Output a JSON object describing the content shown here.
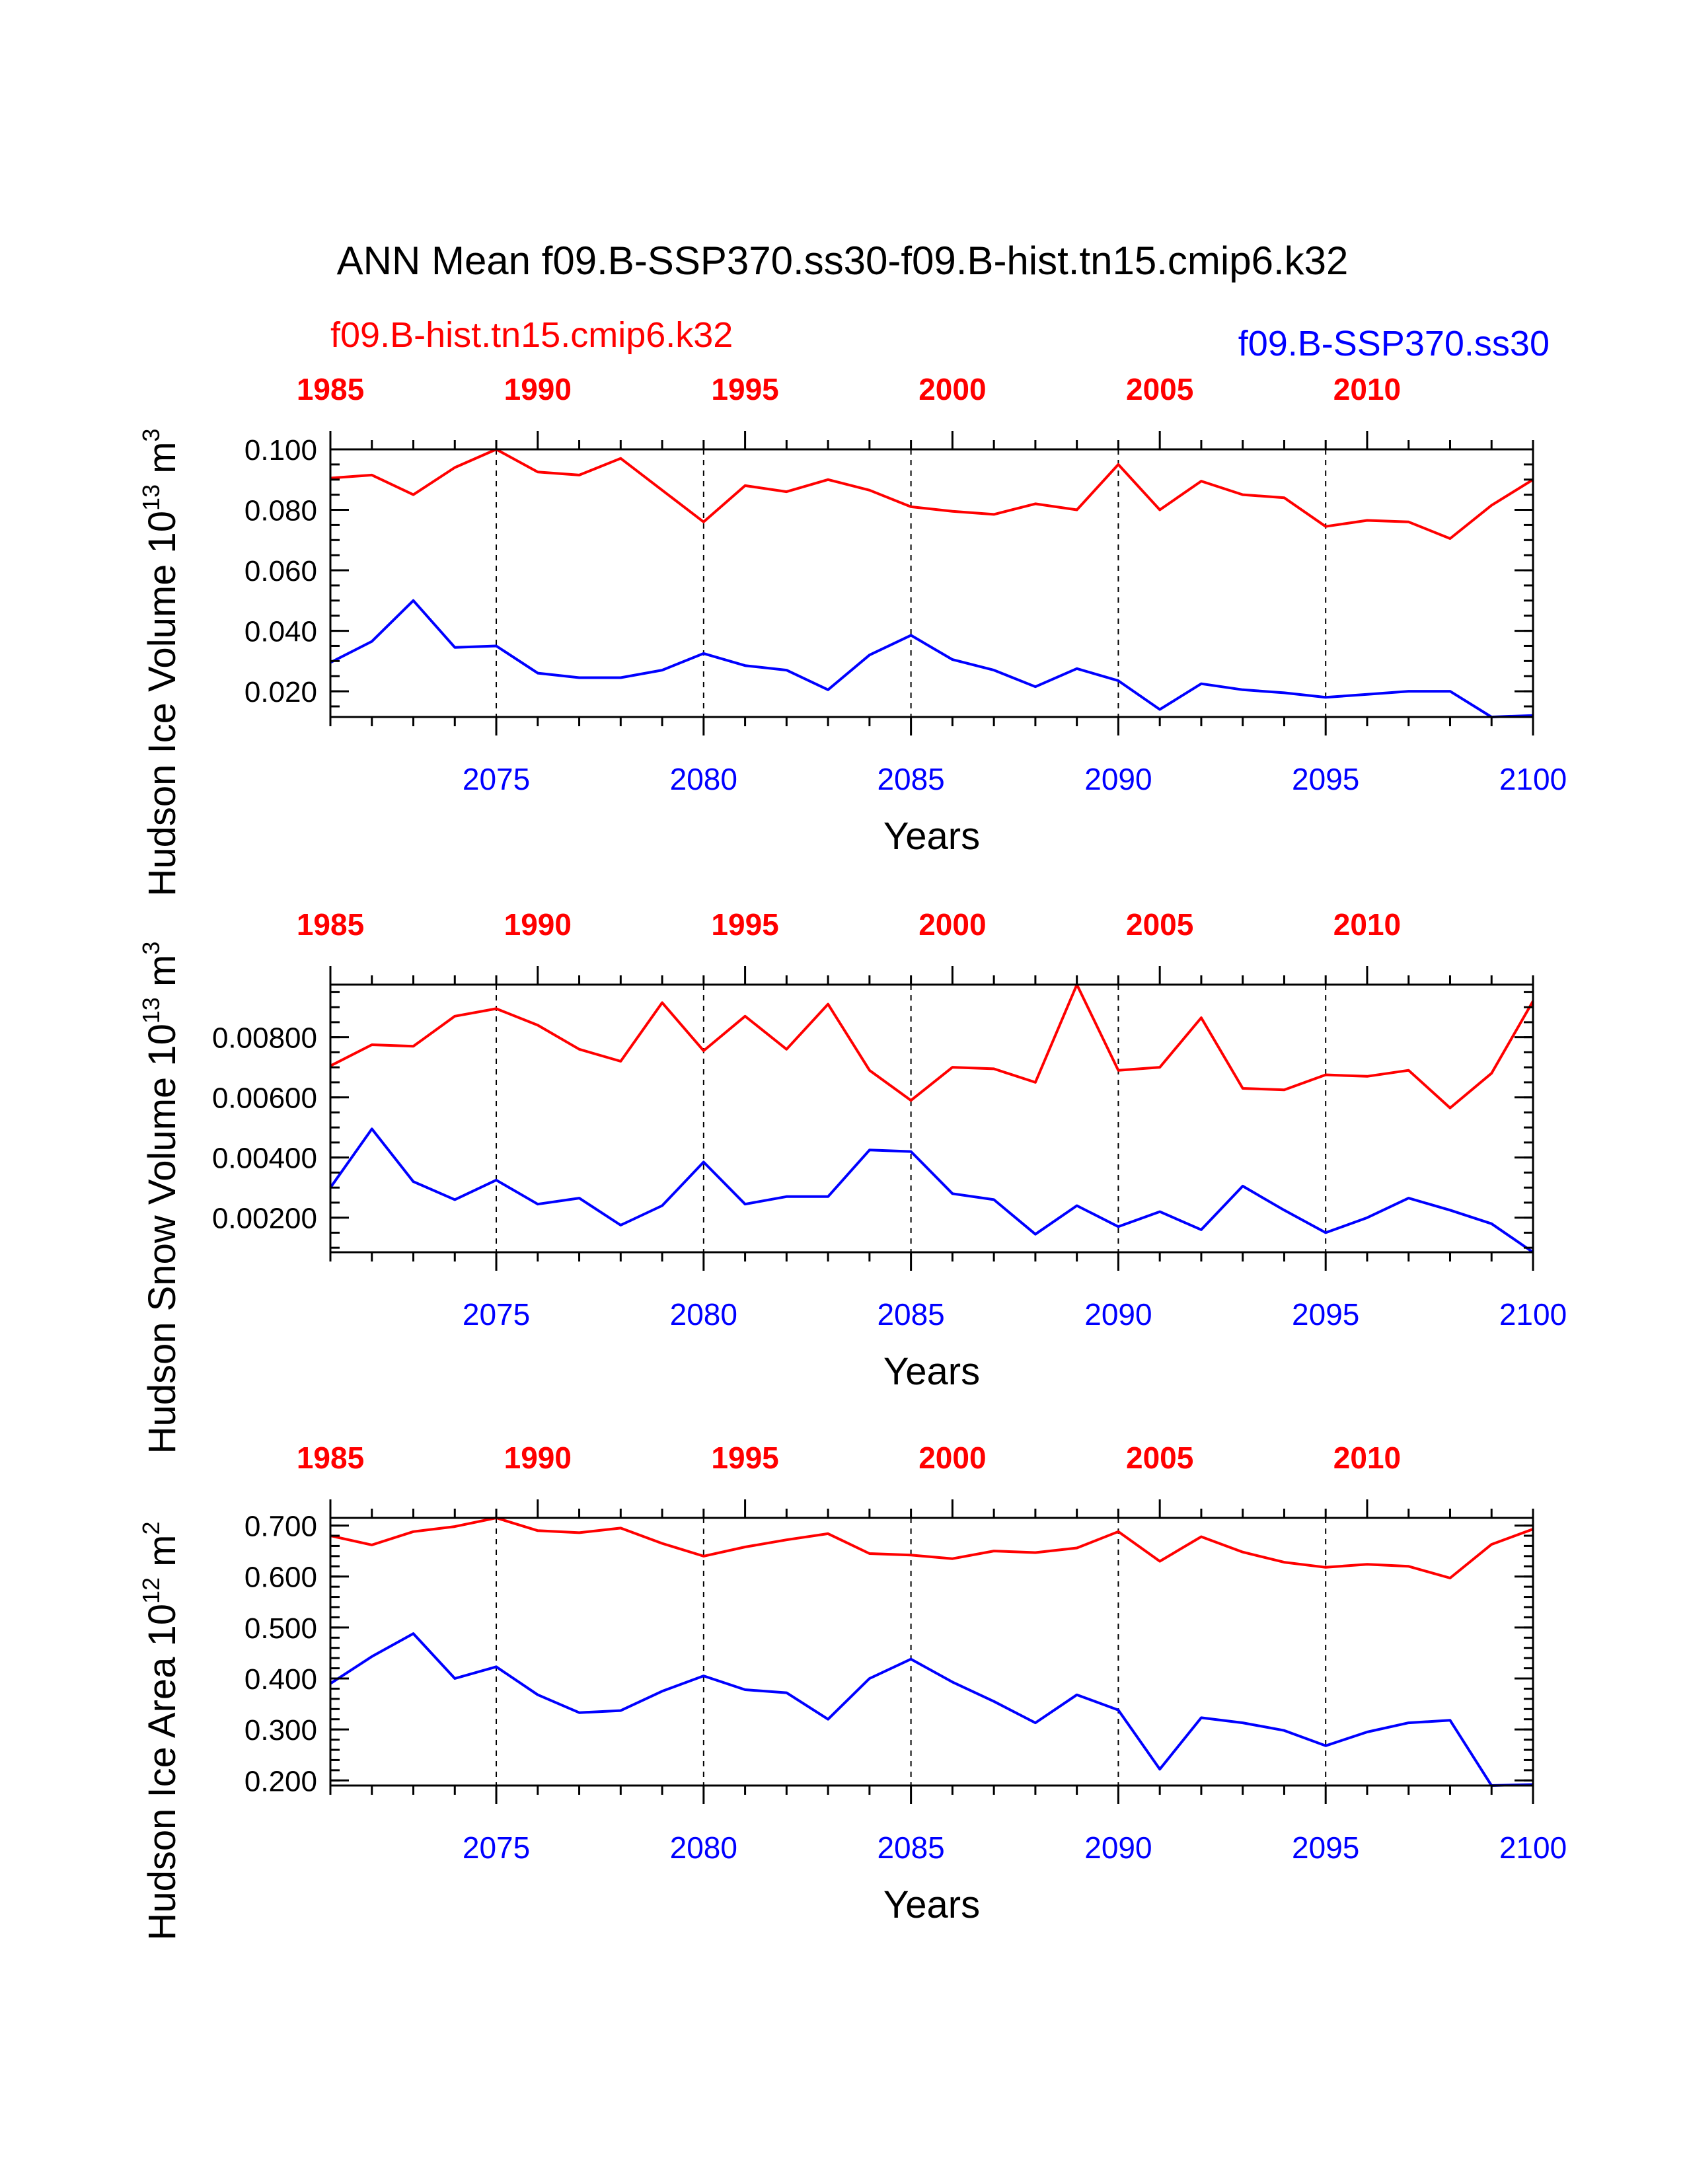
{
  "title": "ANN Mean f09.B-SSP370.ss30-f09.B-hist.tn15.cmip6.k32",
  "legend": {
    "hist_label": "f09.B-hist.tn15.cmip6.k32",
    "ssp_label": "f09.B-SSP370.ss30"
  },
  "colors": {
    "hist": "#ff0000",
    "ssp": "#0000ff",
    "axis": "#000000"
  },
  "xlabel": "Years",
  "chart_data": [
    {
      "type": "line",
      "ylabel": "Hudson Ice Volume 10^13 m^3",
      "ylabel_text": "Hudson Ice Volume 10",
      "ylabel_exp1": "13",
      "ylabel_unit": " m",
      "ylabel_exp2": "3",
      "ylim": [
        0.0115,
        0.1
      ],
      "y_ticks": [
        0.02,
        0.04,
        0.06,
        0.08,
        0.1
      ],
      "y_tick_labels": [
        "0.020",
        "0.040",
        "0.060",
        "0.080",
        "0.100"
      ],
      "y_minor_step": 0.005,
      "bottom_axis": {
        "range": [
          2071,
          2100
        ],
        "ticks": [
          2075,
          2080,
          2085,
          2090,
          2095,
          2100
        ],
        "labels": [
          "2075",
          "2080",
          "2085",
          "2090",
          "2095",
          "2100"
        ]
      },
      "top_axis": {
        "range": [
          1985,
          2014
        ],
        "ticks": [
          1985,
          1990,
          1995,
          2000,
          2005,
          2010
        ],
        "labels": [
          "1985",
          "1990",
          "1995",
          "2000",
          "2005",
          "2010"
        ]
      },
      "series": [
        {
          "name": "f09.B-hist.tn15.cmip6.k32",
          "years": [
            1985,
            1986,
            1987,
            1988,
            1989,
            1990,
            1991,
            1992,
            1993,
            1994,
            1995,
            1996,
            1997,
            1998,
            1999,
            2000,
            2001,
            2002,
            2003,
            2004,
            2005,
            2006,
            2007,
            2008,
            2009,
            2010,
            2011,
            2012,
            2013,
            2014
          ],
          "values": [
            0.0905,
            0.0915,
            0.085,
            0.094,
            0.1,
            0.0925,
            0.0915,
            0.097,
            0.0865,
            0.076,
            0.088,
            0.086,
            0.09,
            0.0865,
            0.081,
            0.0795,
            0.0785,
            0.082,
            0.08,
            0.095,
            0.08,
            0.0895,
            0.085,
            0.084,
            0.0745,
            0.0765,
            0.076,
            0.0705,
            0.0815,
            0.09
          ]
        },
        {
          "name": "f09.B-SSP370.ss30",
          "years": [
            2071,
            2072,
            2073,
            2074,
            2075,
            2076,
            2077,
            2078,
            2079,
            2080,
            2081,
            2082,
            2083,
            2084,
            2085,
            2086,
            2087,
            2088,
            2089,
            2090,
            2091,
            2092,
            2093,
            2094,
            2095,
            2096,
            2097,
            2098,
            2099,
            2100
          ],
          "values": [
            0.0295,
            0.0365,
            0.05,
            0.0345,
            0.035,
            0.026,
            0.0245,
            0.0245,
            0.027,
            0.0325,
            0.0285,
            0.027,
            0.0205,
            0.032,
            0.0385,
            0.0305,
            0.027,
            0.0215,
            0.0275,
            0.0235,
            0.014,
            0.0225,
            0.0205,
            0.0195,
            0.018,
            0.019,
            0.02,
            0.02,
            0.0115,
            0.012
          ]
        }
      ]
    },
    {
      "type": "line",
      "ylabel": "Hudson Snow Volume 10^13 m^3",
      "ylabel_text": "Hudson Snow Volume 10",
      "ylabel_exp1": "13",
      "ylabel_unit": " m",
      "ylabel_exp2": "3",
      "ylim": [
        0.00085,
        0.00975
      ],
      "y_ticks": [
        0.002,
        0.004,
        0.006,
        0.008
      ],
      "y_tick_labels": [
        "0.00200",
        "0.00400",
        "0.00600",
        "0.00800"
      ],
      "y_minor_step": 0.0005,
      "bottom_axis": {
        "range": [
          2071,
          2100
        ],
        "ticks": [
          2075,
          2080,
          2085,
          2090,
          2095,
          2100
        ],
        "labels": [
          "2075",
          "2080",
          "2085",
          "2090",
          "2095",
          "2100"
        ]
      },
      "top_axis": {
        "range": [
          1985,
          2014
        ],
        "ticks": [
          1985,
          1990,
          1995,
          2000,
          2005,
          2010
        ],
        "labels": [
          "1985",
          "1990",
          "1995",
          "2000",
          "2005",
          "2010"
        ]
      },
      "series": [
        {
          "name": "f09.B-hist.tn15.cmip6.k32",
          "years": [
            1985,
            1986,
            1987,
            1988,
            1989,
            1990,
            1991,
            1992,
            1993,
            1994,
            1995,
            1996,
            1997,
            1998,
            1999,
            2000,
            2001,
            2002,
            2003,
            2004,
            2005,
            2006,
            2007,
            2008,
            2009,
            2010,
            2011,
            2012,
            2013,
            2014
          ],
          "values": [
            0.00705,
            0.00775,
            0.0077,
            0.0087,
            0.00895,
            0.0084,
            0.0076,
            0.0072,
            0.00915,
            0.00755,
            0.0087,
            0.0076,
            0.0091,
            0.0069,
            0.0059,
            0.007,
            0.00695,
            0.0065,
            0.00975,
            0.0069,
            0.007,
            0.00865,
            0.0063,
            0.00625,
            0.00675,
            0.0067,
            0.0069,
            0.00565,
            0.0068,
            0.0092
          ]
        },
        {
          "name": "f09.B-SSP370.ss30",
          "years": [
            2071,
            2072,
            2073,
            2074,
            2075,
            2076,
            2077,
            2078,
            2079,
            2080,
            2081,
            2082,
            2083,
            2084,
            2085,
            2086,
            2087,
            2088,
            2089,
            2090,
            2091,
            2092,
            2093,
            2094,
            2095,
            2096,
            2097,
            2098,
            2099,
            2100
          ],
          "values": [
            0.003,
            0.00495,
            0.0032,
            0.0026,
            0.00325,
            0.00245,
            0.00265,
            0.00175,
            0.0024,
            0.00385,
            0.00245,
            0.0027,
            0.0027,
            0.00425,
            0.0042,
            0.0028,
            0.0026,
            0.00145,
            0.0024,
            0.0017,
            0.0022,
            0.0016,
            0.00305,
            0.00225,
            0.0015,
            0.002,
            0.00265,
            0.00225,
            0.0018,
            0.00085
          ]
        }
      ]
    },
    {
      "type": "line",
      "ylabel": "Hudson Ice Area 10^12 m^2",
      "ylabel_text": "Hudson Ice Area 10",
      "ylabel_exp1": "12",
      "ylabel_unit": " m",
      "ylabel_exp2": "2",
      "ylim": [
        0.19,
        0.715
      ],
      "y_ticks": [
        0.2,
        0.3,
        0.4,
        0.5,
        0.6,
        0.7
      ],
      "y_tick_labels": [
        "0.200",
        "0.300",
        "0.400",
        "0.500",
        "0.600",
        "0.700"
      ],
      "y_minor_step": 0.02,
      "bottom_axis": {
        "range": [
          2071,
          2100
        ],
        "ticks": [
          2075,
          2080,
          2085,
          2090,
          2095,
          2100
        ],
        "labels": [
          "2075",
          "2080",
          "2085",
          "2090",
          "2095",
          "2100"
        ]
      },
      "top_axis": {
        "range": [
          1985,
          2014
        ],
        "ticks": [
          1985,
          1990,
          1995,
          2000,
          2005,
          2010
        ],
        "labels": [
          "1985",
          "1990",
          "1995",
          "2000",
          "2005",
          "2010"
        ]
      },
      "series": [
        {
          "name": "f09.B-hist.tn15.cmip6.k32",
          "years": [
            1985,
            1986,
            1987,
            1988,
            1989,
            1990,
            1991,
            1992,
            1993,
            1994,
            1995,
            1996,
            1997,
            1998,
            1999,
            2000,
            2001,
            2002,
            2003,
            2004,
            2005,
            2006,
            2007,
            2008,
            2009,
            2010,
            2011,
            2012,
            2013,
            2014
          ],
          "values": [
            0.68,
            0.662,
            0.688,
            0.698,
            0.715,
            0.69,
            0.686,
            0.695,
            0.665,
            0.64,
            0.658,
            0.672,
            0.684,
            0.645,
            0.642,
            0.635,
            0.65,
            0.647,
            0.656,
            0.688,
            0.63,
            0.678,
            0.648,
            0.628,
            0.618,
            0.624,
            0.62,
            0.597,
            0.663,
            0.693
          ]
        },
        {
          "name": "f09.B-SSP370.ss30",
          "years": [
            2071,
            2072,
            2073,
            2074,
            2075,
            2076,
            2077,
            2078,
            2079,
            2080,
            2081,
            2082,
            2083,
            2084,
            2085,
            2086,
            2087,
            2088,
            2089,
            2090,
            2091,
            2092,
            2093,
            2094,
            2095,
            2096,
            2097,
            2098,
            2099,
            2100
          ],
          "values": [
            0.39,
            0.443,
            0.488,
            0.4,
            0.423,
            0.368,
            0.333,
            0.337,
            0.375,
            0.405,
            0.378,
            0.372,
            0.32,
            0.4,
            0.438,
            0.393,
            0.355,
            0.313,
            0.368,
            0.338,
            0.222,
            0.323,
            0.313,
            0.298,
            0.268,
            0.295,
            0.313,
            0.318,
            0.19,
            0.192
          ]
        }
      ]
    }
  ]
}
